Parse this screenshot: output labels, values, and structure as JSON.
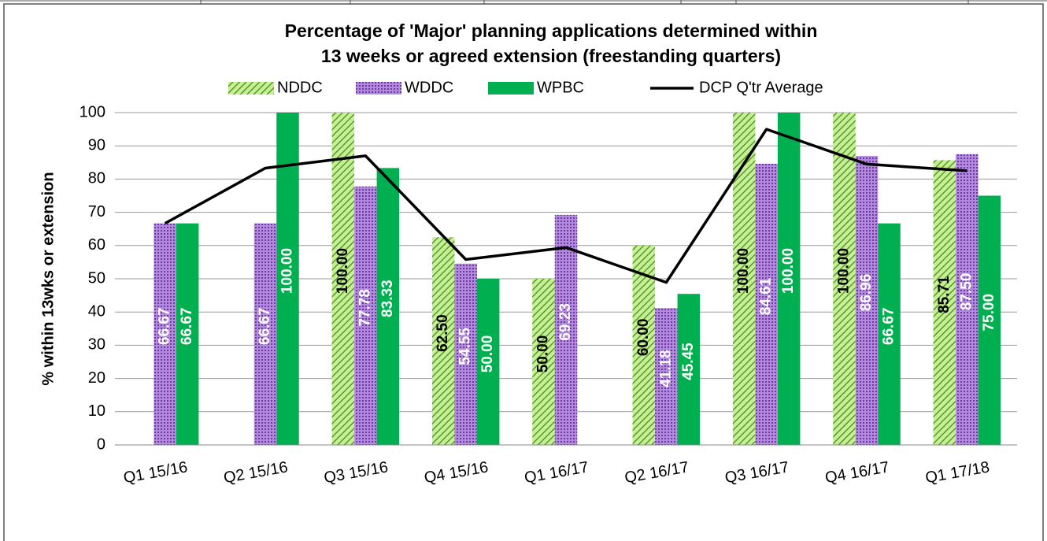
{
  "chart_data": {
    "type": "bar",
    "title": [
      "Percentage of 'Major' planning applications determined within",
      "13 weeks or agreed extension (freestanding quarters)"
    ],
    "y_label": "% within  13wks or extension",
    "categories": [
      "Q1 15/16",
      "Q2 15/16",
      "Q3 15/16",
      "Q4 15/16",
      "Q1 16/17",
      "Q2 16/17",
      "Q3 16/17",
      "Q4 16/17",
      "Q1 17/18"
    ],
    "series": [
      {
        "name": "NDDC",
        "color": "#92d050",
        "pattern": "hatch",
        "label_color": "#000000",
        "values": [
          null,
          null,
          100,
          62.5,
          50,
          60,
          100,
          100,
          85.71
        ],
        "value_labels": [
          null,
          null,
          "100.00",
          "62.50",
          "50.00",
          "60.00",
          "100.00",
          "100.00",
          "85.71"
        ]
      },
      {
        "name": "WDDC",
        "color": "#9966cc",
        "pattern": "dots",
        "label_color": "#ffffff",
        "values": [
          66.67,
          66.67,
          77.78,
          54.55,
          69.23,
          41.18,
          84.61,
          86.96,
          87.5
        ],
        "value_labels": [
          "66.67",
          "66.67",
          "77.78",
          "54.55",
          "69.23",
          "41.18",
          "84.61",
          "86.96",
          "87.50"
        ]
      },
      {
        "name": "WPBC",
        "color": "#00b050",
        "pattern": "solid",
        "label_color": "#ffffff",
        "values": [
          66.67,
          100,
          83.33,
          50,
          null,
          45.45,
          100,
          66.67,
          75
        ],
        "value_labels": [
          "66.67",
          "100.00",
          "83.33",
          "50.00",
          null,
          "45.45",
          "100.00",
          "66.67",
          "75.00"
        ]
      },
      {
        "name": "DCP Q'tr Average",
        "color": "#000000",
        "kind": "line",
        "values": [
          66.67,
          83.3,
          87,
          55.8,
          59.4,
          48.9,
          95,
          84.5,
          82.5
        ]
      }
    ],
    "ylim": [
      0,
      100
    ],
    "yticks": [
      0,
      10,
      20,
      30,
      40,
      50,
      60,
      70,
      80,
      90,
      100
    ],
    "grid": true
  }
}
